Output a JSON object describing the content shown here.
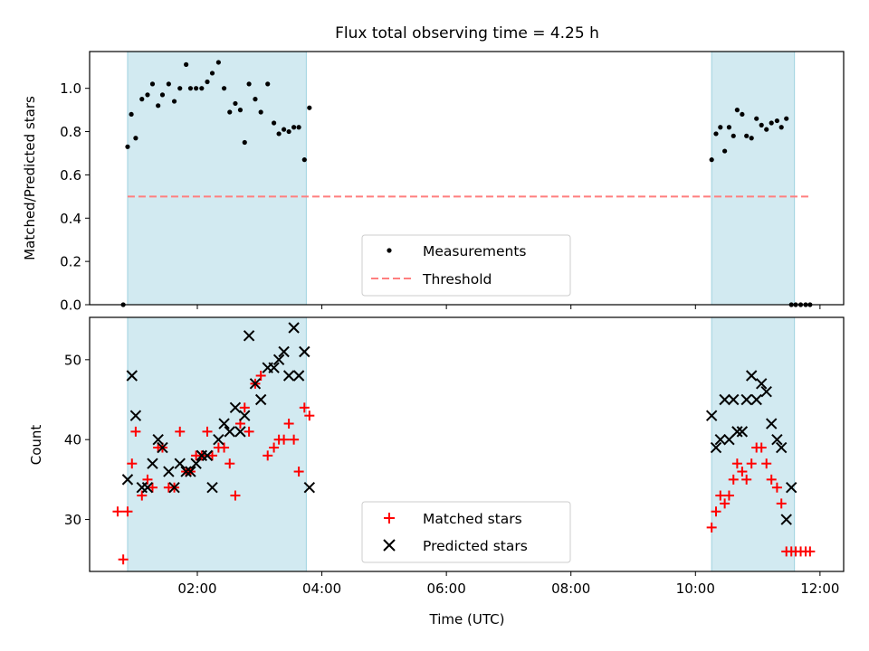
{
  "chart_data": [
    {
      "type": "scatter",
      "title": "Flux total observing time = 4.25 h",
      "ylabel": "Matched/Predicted stars",
      "xlabel": "",
      "xlim_hours": [
        0.27,
        12.38
      ],
      "ylim": [
        0.0,
        1.17
      ],
      "y_ticks": [
        0.0,
        0.2,
        0.4,
        0.6,
        0.8,
        1.0
      ],
      "y_tick_labels": [
        "0.0",
        "0.2",
        "0.4",
        "0.6",
        "0.8",
        "1.0"
      ],
      "shaded_spans_hours": [
        [
          0.88,
          3.75
        ],
        [
          10.26,
          11.59
        ]
      ],
      "shade_color": "#add8e6",
      "threshold": {
        "name": "Threshold",
        "y": 0.5,
        "x_range_hours": [
          0.88,
          11.84
        ],
        "color": "#ff7f7f"
      },
      "legend": [
        "Measurements",
        "Threshold"
      ],
      "legend_position": "lower-center",
      "series": [
        {
          "name": "Measurements",
          "color": "#000000",
          "x": [
            0.81,
            0.88,
            0.94,
            1.01,
            1.11,
            1.2,
            1.28,
            1.37,
            1.44,
            1.54,
            1.63,
            1.72,
            1.82,
            1.89,
            1.98,
            2.07,
            2.16,
            2.24,
            2.34,
            2.43,
            2.52,
            2.61,
            2.69,
            2.76,
            2.83,
            2.93,
            3.02,
            3.13,
            3.23,
            3.31,
            3.39,
            3.47,
            3.55,
            3.63,
            3.72,
            3.8,
            10.26,
            10.33,
            10.4,
            10.47,
            10.54,
            10.61,
            10.67,
            10.75,
            10.82,
            10.9,
            10.98,
            11.06,
            11.14,
            11.22,
            11.31,
            11.38,
            11.46,
            11.54,
            11.61,
            11.69,
            11.77,
            11.84
          ],
          "y": [
            0.0,
            0.73,
            0.88,
            0.77,
            0.95,
            0.97,
            1.02,
            0.92,
            0.97,
            1.02,
            0.94,
            1.0,
            1.11,
            1.0,
            1.0,
            1.0,
            1.03,
            1.07,
            1.12,
            1.0,
            0.89,
            0.93,
            0.9,
            0.75,
            1.02,
            0.95,
            0.89,
            1.02,
            0.84,
            0.79,
            0.81,
            0.8,
            0.82,
            0.82,
            0.67,
            0.91,
            0.67,
            0.79,
            0.82,
            0.71,
            0.82,
            0.78,
            0.9,
            0.88,
            0.78,
            0.77,
            0.86,
            0.83,
            0.81,
            0.84,
            0.85,
            0.82,
            0.86,
            0.0,
            0.0,
            0.0,
            0.0,
            0.0
          ]
        }
      ]
    },
    {
      "type": "scatter",
      "title": "",
      "ylabel": "Count",
      "xlabel": "Time (UTC)",
      "xlim_hours": [
        0.27,
        12.38
      ],
      "ylim": [
        23.5,
        55.3
      ],
      "y_ticks": [
        30,
        40,
        50
      ],
      "y_tick_labels": [
        "30",
        "40",
        "50"
      ],
      "x_ticks_hours": [
        2,
        4,
        6,
        8,
        10,
        12
      ],
      "x_tick_labels": [
        "02:00",
        "04:00",
        "06:00",
        "08:00",
        "10:00",
        "12:00"
      ],
      "shaded_spans_hours": [
        [
          0.88,
          3.75
        ],
        [
          10.26,
          11.59
        ]
      ],
      "legend": [
        "Matched stars",
        "Predicted stars"
      ],
      "legend_position": "lower-center",
      "series": [
        {
          "name": "Matched stars",
          "marker": "plus",
          "color": "#ff0000",
          "x": [
            0.72,
            0.81,
            0.88,
            0.95,
            1.01,
            1.11,
            1.2,
            1.28,
            1.37,
            1.44,
            1.54,
            1.63,
            1.72,
            1.82,
            1.89,
            1.98,
            2.07,
            2.16,
            2.24,
            2.34,
            2.43,
            2.52,
            2.61,
            2.69,
            2.76,
            2.83,
            2.93,
            3.02,
            3.13,
            3.23,
            3.31,
            3.39,
            3.47,
            3.55,
            3.63,
            3.72,
            3.8,
            10.26,
            10.33,
            10.4,
            10.47,
            10.54,
            10.61,
            10.67,
            10.75,
            10.82,
            10.9,
            10.98,
            11.06,
            11.14,
            11.22,
            11.31,
            11.38,
            11.46,
            11.54,
            11.61,
            11.69,
            11.77,
            11.84
          ],
          "y": [
            31,
            25,
            31,
            37,
            41,
            33,
            35,
            34,
            39,
            39,
            34,
            34,
            41,
            36,
            36,
            38,
            38,
            41,
            38,
            39,
            39,
            37,
            33,
            42,
            44,
            41,
            47,
            48,
            38,
            39,
            40,
            40,
            42,
            40,
            36,
            44,
            43,
            29,
            31,
            33,
            32,
            33,
            35,
            37,
            36,
            35,
            37,
            39,
            39,
            37,
            35,
            34,
            32,
            26,
            26,
            26,
            26,
            26,
            26
          ]
        },
        {
          "name": "Predicted stars",
          "marker": "x",
          "color": "#000000",
          "x": [
            0.88,
            0.95,
            1.01,
            1.11,
            1.2,
            1.28,
            1.37,
            1.44,
            1.54,
            1.63,
            1.72,
            1.82,
            1.89,
            1.98,
            2.07,
            2.16,
            2.24,
            2.34,
            2.43,
            2.52,
            2.61,
            2.69,
            2.76,
            2.83,
            2.93,
            3.02,
            3.13,
            3.23,
            3.31,
            3.39,
            3.47,
            3.55,
            3.63,
            3.72,
            3.8,
            10.26,
            10.33,
            10.4,
            10.47,
            10.54,
            10.61,
            10.67,
            10.75,
            10.82,
            10.9,
            10.98,
            11.06,
            11.14,
            11.22,
            11.31,
            11.38,
            11.46,
            11.54
          ],
          "y": [
            35,
            48,
            43,
            34,
            34,
            37,
            40,
            39,
            36,
            34,
            37,
            36,
            36,
            37,
            38,
            38,
            34,
            40,
            42,
            41,
            44,
            41,
            43,
            53,
            47,
            45,
            49,
            49,
            50,
            51,
            48,
            54,
            48,
            51,
            34,
            43,
            39,
            40,
            45,
            40,
            45,
            41,
            41,
            45,
            48,
            45,
            47,
            46,
            42,
            40,
            39,
            30,
            34
          ]
        }
      ]
    }
  ]
}
